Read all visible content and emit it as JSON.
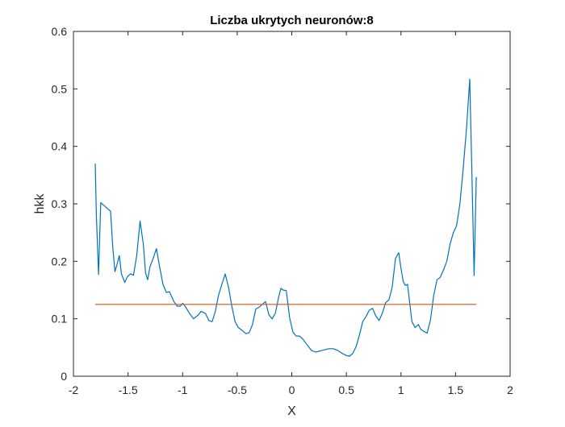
{
  "chart_data": {
    "type": "line",
    "title": "Liczba ukrytych neuronów:8",
    "xlabel": "X",
    "ylabel": "hkk",
    "xlim": [
      -2,
      2
    ],
    "ylim": [
      0,
      0.6
    ],
    "xticks": [
      -2,
      -1.5,
      -1,
      -0.5,
      0,
      0.5,
      1,
      1.5,
      2
    ],
    "xtick_labels": [
      "-2",
      "-1.5",
      "-1",
      "-0.5",
      "0",
      "0.5",
      "1",
      "1.5",
      "2"
    ],
    "yticks": [
      0,
      0.1,
      0.2,
      0.3,
      0.4,
      0.5,
      0.6
    ],
    "ytick_labels": [
      "0",
      "0.1",
      "0.2",
      "0.3",
      "0.4",
      "0.5",
      "0.6"
    ],
    "grid": false,
    "series": [
      {
        "color": "#0072BD",
        "x": [
          -1.8,
          -1.79,
          -1.77,
          -1.75,
          -1.72,
          -1.69,
          -1.66,
          -1.64,
          -1.62,
          -1.6,
          -1.58,
          -1.56,
          -1.53,
          -1.51,
          -1.48,
          -1.45,
          -1.42,
          -1.39,
          -1.36,
          -1.34,
          -1.32,
          -1.3,
          -1.27,
          -1.24,
          -1.21,
          -1.18,
          -1.15,
          -1.12,
          -1.08,
          -1.05,
          -1.02,
          -1.0,
          -0.97,
          -0.94,
          -0.9,
          -0.86,
          -0.83,
          -0.79,
          -0.76,
          -0.73,
          -0.7,
          -0.67,
          -0.64,
          -0.61,
          -0.58,
          -0.55,
          -0.52,
          -0.49,
          -0.45,
          -0.42,
          -0.39,
          -0.36,
          -0.33,
          -0.3,
          -0.27,
          -0.24,
          -0.21,
          -0.18,
          -0.15,
          -0.12,
          -0.1,
          -0.08,
          -0.05,
          -0.02,
          0.01,
          0.04,
          0.07,
          0.1,
          0.14,
          0.18,
          0.22,
          0.26,
          0.3,
          0.34,
          0.38,
          0.42,
          0.46,
          0.5,
          0.53,
          0.56,
          0.59,
          0.62,
          0.65,
          0.68,
          0.71,
          0.74,
          0.77,
          0.8,
          0.83,
          0.86,
          0.89,
          0.92,
          0.95,
          0.98,
          1.0,
          1.02,
          1.04,
          1.06,
          1.08,
          1.1,
          1.13,
          1.16,
          1.18,
          1.21,
          1.24,
          1.27,
          1.3,
          1.33,
          1.36,
          1.39,
          1.42,
          1.45,
          1.48,
          1.51,
          1.54,
          1.57,
          1.6,
          1.63,
          1.65,
          1.67,
          1.69
        ],
        "y": [
          0.37,
          0.28,
          0.177,
          0.302,
          0.297,
          0.292,
          0.287,
          0.225,
          0.182,
          0.195,
          0.21,
          0.178,
          0.163,
          0.172,
          0.178,
          0.176,
          0.21,
          0.27,
          0.23,
          0.18,
          0.168,
          0.19,
          0.205,
          0.222,
          0.19,
          0.16,
          0.146,
          0.147,
          0.13,
          0.122,
          0.122,
          0.127,
          0.12,
          0.11,
          0.1,
          0.106,
          0.113,
          0.109,
          0.097,
          0.095,
          0.113,
          0.142,
          0.16,
          0.178,
          0.155,
          0.123,
          0.095,
          0.085,
          0.079,
          0.074,
          0.076,
          0.09,
          0.117,
          0.12,
          0.125,
          0.13,
          0.107,
          0.1,
          0.11,
          0.138,
          0.153,
          0.15,
          0.149,
          0.102,
          0.077,
          0.07,
          0.07,
          0.065,
          0.055,
          0.045,
          0.042,
          0.044,
          0.046,
          0.048,
          0.048,
          0.045,
          0.04,
          0.036,
          0.035,
          0.04,
          0.052,
          0.072,
          0.095,
          0.104,
          0.115,
          0.118,
          0.105,
          0.097,
          0.11,
          0.128,
          0.133,
          0.155,
          0.205,
          0.215,
          0.188,
          0.165,
          0.158,
          0.16,
          0.128,
          0.095,
          0.085,
          0.09,
          0.082,
          0.078,
          0.075,
          0.098,
          0.14,
          0.168,
          0.172,
          0.185,
          0.2,
          0.23,
          0.25,
          0.262,
          0.3,
          0.36,
          0.43,
          0.517,
          0.35,
          0.175,
          0.347
        ]
      },
      {
        "color": "#D95319",
        "x": [
          -1.8,
          1.69
        ],
        "y": [
          0.125,
          0.125
        ]
      }
    ]
  }
}
